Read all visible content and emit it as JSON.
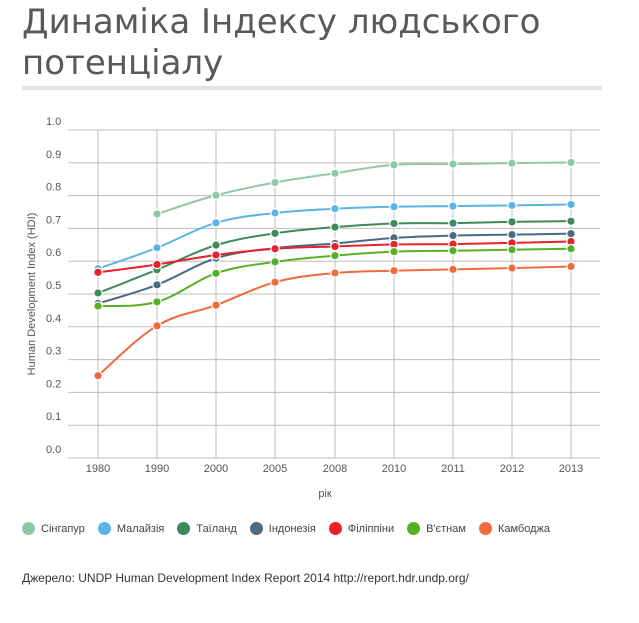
{
  "header": {
    "title": "Динаміка Індексу людського потенціалу"
  },
  "chart_data": {
    "type": "line",
    "title": "Динаміка Індексу людського потенціалу",
    "xlabel": "рік",
    "ylabel": "Human Development Index (HDI)",
    "categories": [
      "1980",
      "1990",
      "2000",
      "2005",
      "2008",
      "2010",
      "2011",
      "2012",
      "2013"
    ],
    "yticks": [
      "0.0",
      "0.1",
      "0.2",
      "0.3",
      "0.4",
      "0.5",
      "0.6",
      "0.7",
      "0.8",
      "0.9",
      "1.0"
    ],
    "ylim": [
      0,
      1
    ],
    "grid": true,
    "legend_position": "bottom",
    "series": [
      {
        "name": "Сінгапур",
        "color": "#8fc7a8",
        "values": [
          null,
          0.744,
          0.801,
          0.84,
          0.868,
          0.894,
          0.896,
          0.899,
          0.901
        ]
      },
      {
        "name": "Малайзія",
        "color": "#5ab4e5",
        "values": [
          0.577,
          0.641,
          0.717,
          0.747,
          0.76,
          0.766,
          0.768,
          0.77,
          0.773
        ]
      },
      {
        "name": "Таїланд",
        "color": "#3d8a5c",
        "values": [
          0.503,
          0.574,
          0.649,
          0.685,
          0.704,
          0.715,
          0.716,
          0.72,
          0.722
        ]
      },
      {
        "name": "Індонезія",
        "color": "#4a6b82",
        "values": [
          0.471,
          0.528,
          0.609,
          0.64,
          0.654,
          0.671,
          0.678,
          0.681,
          0.684
        ]
      },
      {
        "name": "Філіппіни",
        "color": "#e8212a",
        "values": [
          0.566,
          0.59,
          0.619,
          0.638,
          0.645,
          0.651,
          0.652,
          0.656,
          0.66
        ]
      },
      {
        "name": "В'єтнам",
        "color": "#56b023",
        "values": [
          0.463,
          0.476,
          0.563,
          0.598,
          0.617,
          0.629,
          0.632,
          0.635,
          0.638
        ]
      },
      {
        "name": "Камбоджа",
        "color": "#f06a3b",
        "values": [
          0.251,
          0.403,
          0.466,
          0.536,
          0.564,
          0.571,
          0.575,
          0.579,
          0.584
        ]
      }
    ]
  },
  "source": {
    "text": "Джерело: UNDP Human Development Index Report 2014 http://report.hdr.undp.org/"
  }
}
